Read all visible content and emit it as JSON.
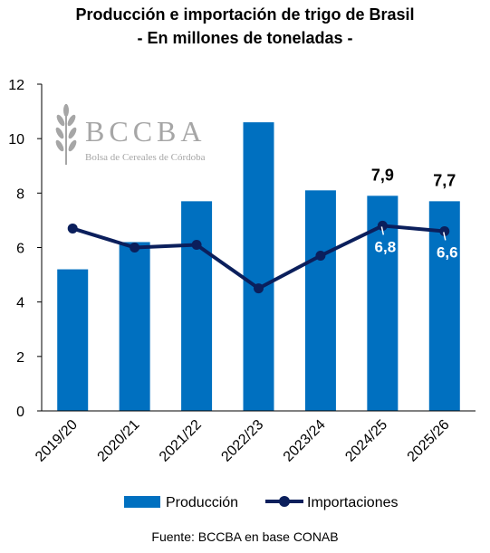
{
  "title_line1": "Producción e importación de trigo de Brasil",
  "title_line2": "- En millones de toneladas -",
  "source": "Fuente: BCCBA en base CONAB",
  "watermark": {
    "logo_text": "BCCBA",
    "org_name": "Bolsa de Cereales de Córdoba"
  },
  "colors": {
    "bars": "#0070C0",
    "line": "#0B1F5C",
    "axis": "#000000",
    "watermark": "#A6A6A6"
  },
  "chart_data": {
    "type": "bar",
    "categories": [
      "2019/20",
      "2020/21",
      "2021/22",
      "2022/23",
      "2023/24",
      "2024/25",
      "2025/26"
    ],
    "series": [
      {
        "name": "Producción",
        "type": "bar",
        "values": [
          5.2,
          6.2,
          7.7,
          10.6,
          8.1,
          7.9,
          7.7
        ],
        "data_labels": [
          null,
          null,
          null,
          null,
          null,
          "7,9",
          "7,7"
        ]
      },
      {
        "name": "Importaciones",
        "type": "line",
        "values": [
          6.7,
          6.0,
          6.1,
          4.5,
          5.7,
          6.8,
          6.6
        ],
        "data_labels": [
          null,
          null,
          null,
          null,
          null,
          "6,8",
          "6,6"
        ]
      }
    ],
    "ylim": [
      0,
      12
    ],
    "yticks": [
      0,
      2,
      4,
      6,
      8,
      10,
      12
    ],
    "ytick_labels": [
      "0",
      "2",
      "4",
      "6",
      "8",
      "10",
      "12"
    ],
    "grid": false,
    "legend_position": "bottom"
  }
}
